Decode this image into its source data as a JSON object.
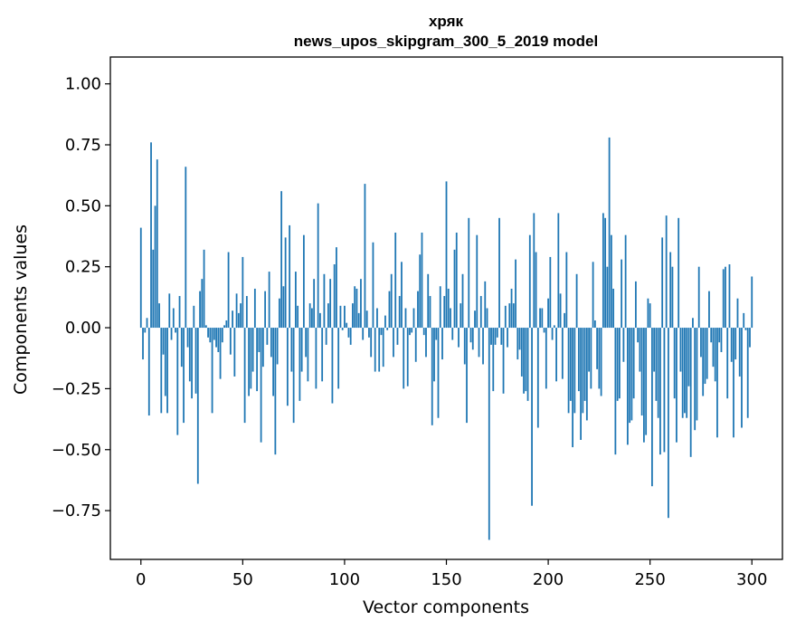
{
  "chart_data": {
    "type": "bar",
    "title_line1": "хряк",
    "title_line2": "news_upos_skipgram_300_5_2019 model",
    "xlabel": "Vector components",
    "ylabel": "Components values",
    "xlim": [
      -15,
      315
    ],
    "ylim": [
      -0.95,
      1.11
    ],
    "xticks": [
      0,
      50,
      100,
      150,
      200,
      250,
      300
    ],
    "xtick_labels": [
      "0",
      "50",
      "100",
      "150",
      "200",
      "250",
      "300"
    ],
    "yticks": [
      1.0,
      0.75,
      0.5,
      0.25,
      0.0,
      -0.25,
      -0.5,
      -0.75
    ],
    "ytick_labels": [
      "1.00",
      "0.75",
      "0.50",
      "0.25",
      "0.00",
      "−0.25",
      "−0.50",
      "−0.75"
    ],
    "bar_color": "#1f77b4",
    "values": [
      0.41,
      -0.13,
      -0.02,
      0.04,
      -0.36,
      0.76,
      0.32,
      0.5,
      0.69,
      0.1,
      -0.35,
      -0.11,
      -0.28,
      -0.35,
      0.14,
      -0.05,
      0.08,
      -0.02,
      -0.44,
      0.13,
      -0.16,
      -0.39,
      0.66,
      -0.08,
      -0.22,
      -0.29,
      0.09,
      -0.27,
      -0.64,
      0.15,
      0.2,
      0.32,
      0.01,
      -0.04,
      -0.06,
      -0.35,
      -0.05,
      -0.08,
      -0.1,
      -0.21,
      -0.06,
      0.01,
      0.03,
      0.31,
      -0.11,
      0.07,
      -0.2,
      0.14,
      0.06,
      0.1,
      0.29,
      -0.39,
      0.13,
      -0.28,
      -0.25,
      -0.18,
      0.16,
      -0.26,
      -0.1,
      -0.47,
      -0.16,
      0.15,
      -0.07,
      0.23,
      -0.12,
      -0.28,
      -0.52,
      -0.15,
      0.12,
      0.56,
      0.17,
      0.37,
      -0.32,
      0.42,
      -0.18,
      -0.39,
      0.23,
      0.09,
      -0.3,
      -0.18,
      0.38,
      -0.12,
      -0.22,
      0.1,
      0.08,
      0.2,
      -0.25,
      0.51,
      0.06,
      -0.22,
      0.22,
      -0.07,
      0.1,
      0.2,
      -0.31,
      0.26,
      0.33,
      -0.25,
      0.09,
      -0.01,
      0.09,
      0.02,
      -0.04,
      -0.07,
      0.1,
      0.17,
      0.16,
      0.06,
      0.2,
      -0.05,
      0.59,
      0.07,
      -0.04,
      -0.12,
      0.35,
      -0.18,
      0.08,
      -0.18,
      -0.03,
      -0.16,
      0.05,
      -0.01,
      0.15,
      0.22,
      -0.12,
      0.39,
      -0.07,
      0.13,
      0.27,
      -0.25,
      0.08,
      -0.24,
      -0.03,
      -0.02,
      0.08,
      -0.14,
      0.15,
      0.3,
      0.39,
      -0.03,
      -0.12,
      0.22,
      0.13,
      -0.4,
      -0.22,
      -0.05,
      -0.37,
      0.17,
      -0.13,
      0.13,
      0.6,
      0.16,
      0.08,
      -0.05,
      0.32,
      0.39,
      -0.08,
      0.1,
      0.22,
      -0.15,
      -0.39,
      0.45,
      -0.06,
      -0.09,
      0.07,
      0.38,
      -0.12,
      0.13,
      -0.15,
      0.19,
      0.08,
      -0.87,
      -0.07,
      -0.26,
      -0.07,
      -0.04,
      0.45,
      -0.07,
      -0.27,
      0.09,
      -0.08,
      0.1,
      0.16,
      0.1,
      0.28,
      -0.13,
      -0.09,
      -0.2,
      -0.27,
      -0.26,
      -0.3,
      0.38,
      -0.73,
      0.47,
      0.31,
      -0.41,
      0.08,
      0.08,
      -0.02,
      -0.25,
      0.12,
      0.29,
      -0.05,
      0.01,
      -0.22,
      0.47,
      0.14,
      -0.21,
      0.06,
      0.31,
      -0.35,
      -0.3,
      -0.49,
      -0.35,
      0.22,
      -0.26,
      -0.46,
      -0.35,
      -0.3,
      -0.38,
      -0.18,
      -0.25,
      0.27,
      0.03,
      -0.17,
      -0.25,
      -0.28,
      0.47,
      0.45,
      0.25,
      0.78,
      0.38,
      0.16,
      -0.52,
      -0.3,
      -0.29,
      0.28,
      -0.14,
      0.38,
      -0.48,
      -0.39,
      -0.38,
      -0.29,
      0.19,
      -0.06,
      -0.18,
      -0.36,
      -0.47,
      -0.44,
      0.12,
      0.1,
      -0.65,
      -0.18,
      -0.3,
      -0.37,
      -0.52,
      0.37,
      -0.51,
      0.46,
      -0.78,
      0.31,
      0.25,
      -0.29,
      -0.47,
      0.45,
      -0.18,
      -0.37,
      -0.35,
      -0.37,
      -0.24,
      -0.53,
      0.04,
      -0.42,
      -0.38,
      0.25,
      -0.12,
      -0.28,
      -0.23,
      -0.21,
      0.15,
      -0.06,
      -0.16,
      -0.22,
      -0.45,
      -0.06,
      -0.1,
      0.24,
      0.25,
      -0.29,
      0.26,
      -0.14,
      -0.45,
      -0.13,
      0.12,
      -0.2,
      -0.41,
      0.06,
      -0.01,
      -0.37,
      -0.08,
      0.21
    ]
  }
}
